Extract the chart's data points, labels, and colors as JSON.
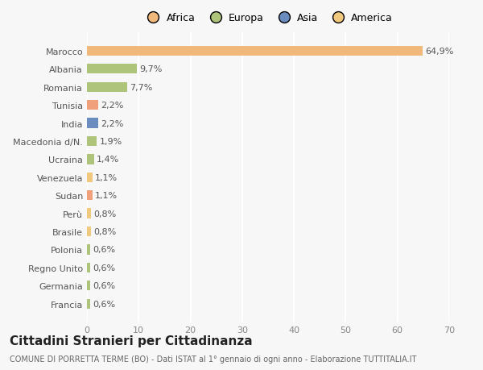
{
  "countries": [
    "Francia",
    "Germania",
    "Regno Unito",
    "Polonia",
    "Brasile",
    "Perù",
    "Sudan",
    "Venezuela",
    "Ucraina",
    "Macedonia d/N.",
    "India",
    "Tunisia",
    "Romania",
    "Albania",
    "Marocco"
  ],
  "values": [
    0.6,
    0.6,
    0.6,
    0.6,
    0.8,
    0.8,
    1.1,
    1.1,
    1.4,
    1.9,
    2.2,
    2.2,
    7.7,
    9.7,
    64.9
  ],
  "labels": [
    "0,6%",
    "0,6%",
    "0,6%",
    "0,6%",
    "0,8%",
    "0,8%",
    "1,1%",
    "1,1%",
    "1,4%",
    "1,9%",
    "2,2%",
    "2,2%",
    "7,7%",
    "9,7%",
    "64,9%"
  ],
  "colors": [
    "#adc47a",
    "#adc47a",
    "#adc47a",
    "#adc47a",
    "#f0c97e",
    "#f0c97e",
    "#f0a07a",
    "#f0c97e",
    "#adc47a",
    "#adc47a",
    "#6b8cbf",
    "#f0a07a",
    "#adc47a",
    "#adc47a",
    "#f0b87a"
  ],
  "legend_labels": [
    "Africa",
    "Europa",
    "Asia",
    "America"
  ],
  "legend_colors": [
    "#f0b87a",
    "#adc47a",
    "#6b8cbf",
    "#f0c97e"
  ],
  "title": "Cittadini Stranieri per Cittadinanza",
  "subtitle": "COMUNE DI PORRETTA TERME (BO) - Dati ISTAT al 1° gennaio di ogni anno - Elaborazione TUTTITALIA.IT",
  "xlim": [
    0,
    70
  ],
  "xticks": [
    0,
    10,
    20,
    30,
    40,
    50,
    60,
    70
  ],
  "background_color": "#f7f7f7",
  "grid_color": "#ffffff",
  "bar_height": 0.55,
  "title_fontsize": 11,
  "subtitle_fontsize": 7,
  "label_fontsize": 8,
  "tick_fontsize": 8,
  "legend_fontsize": 9
}
